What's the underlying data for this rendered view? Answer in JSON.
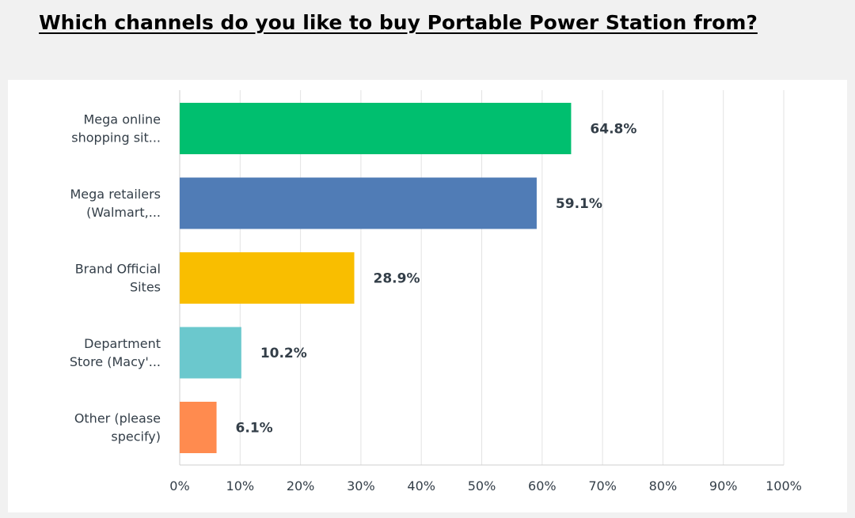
{
  "chart_data": {
    "type": "bar",
    "orientation": "horizontal",
    "title": "Which channels do you like to buy Portable Power Station from?",
    "categories": [
      [
        "Mega online",
        "shopping sit..."
      ],
      [
        "Mega retailers",
        "(Walmart,..."
      ],
      [
        "Brand Official",
        "Sites"
      ],
      [
        "Department",
        "Store (Macy'..."
      ],
      [
        "Other (please",
        "specify)"
      ]
    ],
    "values": [
      64.8,
      59.1,
      28.9,
      10.2,
      6.1
    ],
    "value_labels": [
      "64.8%",
      "59.1%",
      "28.9%",
      "10.2%",
      "6.1%"
    ],
    "colors": [
      "#00bf6f",
      "#507cb6",
      "#f9be00",
      "#6bc8cd",
      "#ff8b4f"
    ],
    "xlim": [
      0,
      100
    ],
    "xticks": [
      0,
      10,
      20,
      30,
      40,
      50,
      60,
      70,
      80,
      90,
      100
    ],
    "xtick_labels": [
      "0%",
      "10%",
      "20%",
      "30%",
      "40%",
      "50%",
      "60%",
      "70%",
      "80%",
      "90%",
      "100%"
    ],
    "grid": true,
    "legend": "none"
  }
}
